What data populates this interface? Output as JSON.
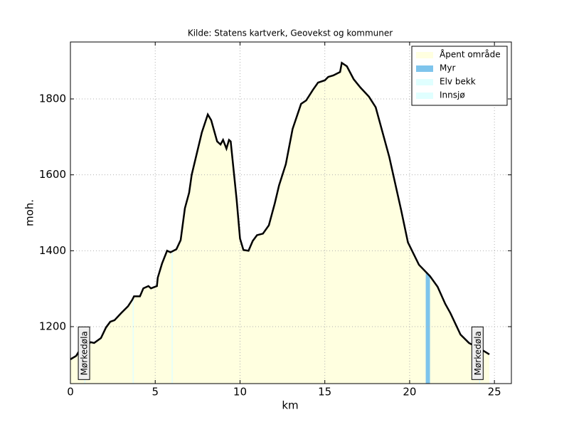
{
  "chart_data": {
    "type": "line",
    "title": "Kilde: Statens kartverk, Geovekst og kommuner",
    "xlabel": "km",
    "ylabel": "moh.",
    "xlim": [
      0,
      26
    ],
    "ylim": [
      1050,
      1950
    ],
    "xticks": [
      0,
      5,
      10,
      15,
      20,
      25
    ],
    "yticks": [
      1200,
      1400,
      1600,
      1800
    ],
    "grid": true,
    "legend": "upper right",
    "line_color": "#000000",
    "x": [
      0,
      0.34,
      0.6,
      1.2,
      1.4,
      1.8,
      2.1,
      2.35,
      2.6,
      3.0,
      3.4,
      3.65,
      3.75,
      4.1,
      4.3,
      4.6,
      4.75,
      5.1,
      5.15,
      5.4,
      5.7,
      5.9,
      6.25,
      6.5,
      6.75,
      7.0,
      7.15,
      7.45,
      7.75,
      8.1,
      8.3,
      8.65,
      8.85,
      9.0,
      9.2,
      9.35,
      9.45,
      9.8,
      10.0,
      10.2,
      10.5,
      10.75,
      11.0,
      11.35,
      11.7,
      12.05,
      12.3,
      12.7,
      13.1,
      13.6,
      13.9,
      14.3,
      14.6,
      15.0,
      15.2,
      15.5,
      15.9,
      16.0,
      16.3,
      16.7,
      17.1,
      17.6,
      18.0,
      18.8,
      19.5,
      19.9,
      20.55,
      21.2,
      21.65,
      22.1,
      22.4,
      23.0,
      23.5,
      24.15,
      24.7
    ],
    "values": [
      1114,
      1123,
      1142,
      1159,
      1157,
      1170,
      1198,
      1213,
      1217,
      1236,
      1254,
      1271,
      1280,
      1280,
      1301,
      1307,
      1301,
      1307,
      1329,
      1366,
      1400,
      1396,
      1404,
      1428,
      1512,
      1553,
      1600,
      1656,
      1712,
      1759,
      1744,
      1688,
      1680,
      1692,
      1669,
      1692,
      1688,
      1535,
      1432,
      1402,
      1400,
      1426,
      1441,
      1445,
      1467,
      1525,
      1572,
      1628,
      1721,
      1787,
      1796,
      1824,
      1843,
      1849,
      1858,
      1862,
      1871,
      1895,
      1886,
      1852,
      1830,
      1806,
      1778,
      1647,
      1507,
      1422,
      1363,
      1333,
      1305,
      1260,
      1236,
      1179,
      1157,
      1142,
      1127
    ],
    "areas": [
      {
        "name": "Åpent område",
        "color": "#ffffe0",
        "ranges": [
          [
            0,
            24.7
          ]
        ]
      },
      {
        "name": "Myr",
        "color": "#7ec4ec",
        "ranges": [
          [
            20.95,
            21.2
          ]
        ]
      },
      {
        "name": "Elv bekk",
        "color": "#e0ffff",
        "ranges": [
          [
            0.82,
            0.88
          ],
          [
            3.67,
            3.73
          ],
          [
            5.97,
            6.03
          ],
          [
            24.1,
            24.16
          ]
        ]
      },
      {
        "name": "Innsjø",
        "color": "#e0ffff",
        "ranges": []
      }
    ],
    "annotations": [
      {
        "text": "Mørkedøla",
        "x": 0.8,
        "y": 1130
      },
      {
        "text": "Mørkedøla",
        "x": 24.0,
        "y": 1130
      }
    ]
  }
}
